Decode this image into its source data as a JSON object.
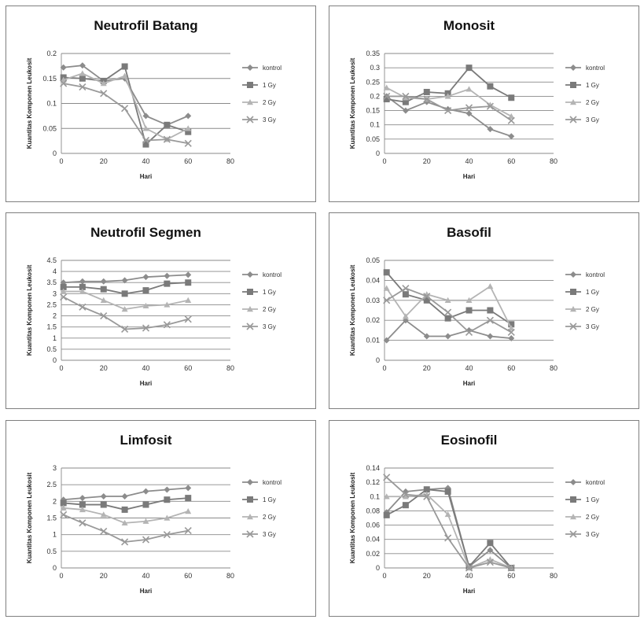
{
  "series_styles": [
    {
      "color": "#8c8c8c",
      "marker": "diamond"
    },
    {
      "color": "#7a7a7a",
      "marker": "square"
    },
    {
      "color": "#b4b4b4",
      "marker": "triangle"
    },
    {
      "color": "#999999",
      "marker": "x"
    }
  ],
  "chart_data": [
    {
      "type": "line",
      "title": "Neutrofil Batang",
      "xlabel": "Hari",
      "ylabel": "Kuantitas Komponen Leukosit",
      "xlim": [
        0,
        80
      ],
      "xticks": [
        0,
        20,
        40,
        60,
        80
      ],
      "xtick_labels": [
        "0",
        "20",
        "40",
        "60",
        "80"
      ],
      "ylim": [
        0,
        0.2
      ],
      "yticks": [
        0,
        0.05,
        0.1,
        0.15,
        0.2
      ],
      "ytick_labels": [
        "0",
        "0.05",
        "0.1",
        "0.15",
        "0.2"
      ],
      "grid": true,
      "legend": "right",
      "x": [
        1,
        10,
        20,
        30,
        40,
        50,
        60
      ],
      "series": [
        {
          "name": "kontrol",
          "values": [
            0.172,
            0.176,
            0.145,
            0.15,
            0.075,
            0.057,
            0.075
          ]
        },
        {
          "name": "1 Gy",
          "values": [
            0.152,
            0.15,
            0.145,
            0.174,
            0.018,
            0.057,
            0.043
          ]
        },
        {
          "name": "2 Gy",
          "values": [
            0.147,
            0.16,
            0.14,
            0.155,
            0.05,
            0.028,
            0.05
          ]
        },
        {
          "name": "3 Gy",
          "values": [
            0.14,
            0.133,
            0.12,
            0.09,
            0.026,
            0.028,
            0.02
          ]
        }
      ]
    },
    {
      "type": "line",
      "title": "Monosit",
      "xlabel": "Hari",
      "ylabel": "Kuantitas Komponen Leukosit",
      "xlim": [
        0,
        80
      ],
      "xticks": [
        0,
        20,
        40,
        60,
        80
      ],
      "xtick_labels": [
        "0",
        "20",
        "40",
        "60",
        "80"
      ],
      "ylim": [
        0,
        0.35
      ],
      "yticks": [
        0,
        0.05,
        0.1,
        0.15,
        0.2,
        0.25,
        0.3,
        0.35
      ],
      "ytick_labels": [
        "0",
        "0.05",
        "0.1",
        "0.15",
        "0.2",
        "0.25",
        "0.3",
        "0.35"
      ],
      "grid": true,
      "legend": "right",
      "x": [
        1,
        10,
        20,
        30,
        40,
        50,
        60
      ],
      "series": [
        {
          "name": "kontrol",
          "values": [
            0.2,
            0.15,
            0.18,
            0.155,
            0.14,
            0.085,
            0.06
          ]
        },
        {
          "name": "1 Gy",
          "values": [
            0.19,
            0.18,
            0.215,
            0.21,
            0.3,
            0.235,
            0.195
          ]
        },
        {
          "name": "2 Gy",
          "values": [
            0.23,
            0.195,
            0.19,
            0.2,
            0.225,
            0.17,
            0.13
          ]
        },
        {
          "name": "3 Gy",
          "values": [
            0.2,
            0.2,
            0.19,
            0.15,
            0.16,
            0.165,
            0.115
          ]
        }
      ]
    },
    {
      "type": "line",
      "title": "Neutrofil Segmen",
      "xlabel": "Hari",
      "ylabel": "Kuantitas Komponen Leukosit",
      "xlim": [
        0,
        80
      ],
      "xticks": [
        0,
        20,
        40,
        60,
        80
      ],
      "xtick_labels": [
        "0",
        "20",
        "40",
        "60",
        "80"
      ],
      "ylim": [
        0,
        4.5
      ],
      "yticks": [
        0,
        0.5,
        1,
        1.5,
        2,
        2.5,
        3,
        3.5,
        4,
        4.5
      ],
      "ytick_labels": [
        "0",
        "0.5",
        "1",
        "1.5",
        "2",
        "2.5",
        "3",
        "3.5",
        "4",
        "4.5"
      ],
      "grid": true,
      "legend": "right",
      "x": [
        1,
        10,
        20,
        30,
        40,
        50,
        60
      ],
      "series": [
        {
          "name": "kontrol",
          "values": [
            3.5,
            3.55,
            3.55,
            3.6,
            3.75,
            3.8,
            3.85
          ]
        },
        {
          "name": "1 Gy",
          "values": [
            3.3,
            3.3,
            3.2,
            3.0,
            3.15,
            3.45,
            3.5
          ]
        },
        {
          "name": "2 Gy",
          "values": [
            3.1,
            3.1,
            2.7,
            2.3,
            2.45,
            2.5,
            2.7
          ]
        },
        {
          "name": "3 Gy",
          "values": [
            2.85,
            2.4,
            2.0,
            1.4,
            1.45,
            1.6,
            1.85
          ]
        }
      ]
    },
    {
      "type": "line",
      "title": "Basofil",
      "xlabel": "Hari",
      "ylabel": "Kuantitas Komponen Leukosit",
      "xlim": [
        0,
        80
      ],
      "xticks": [
        0,
        20,
        40,
        60,
        80
      ],
      "xtick_labels": [
        "0",
        "20",
        "40",
        "60",
        "80"
      ],
      "ylim": [
        0,
        0.05
      ],
      "yticks": [
        0,
        0.01,
        0.02,
        0.03,
        0.04,
        0.05
      ],
      "ytick_labels": [
        "0",
        "0.01",
        "0.02",
        "0.03",
        "0.04",
        "0.05"
      ],
      "grid": true,
      "legend": "right",
      "x": [
        1,
        10,
        20,
        30,
        40,
        50,
        60
      ],
      "series": [
        {
          "name": "kontrol",
          "values": [
            0.01,
            0.02,
            0.012,
            0.012,
            0.015,
            0.012,
            0.011
          ]
        },
        {
          "name": "1 Gy",
          "values": [
            0.044,
            0.033,
            0.03,
            0.021,
            0.025,
            0.025,
            0.018
          ]
        },
        {
          "name": "2 Gy",
          "values": [
            0.036,
            0.022,
            0.033,
            0.03,
            0.03,
            0.037,
            0.016
          ]
        },
        {
          "name": "3 Gy",
          "values": [
            0.03,
            0.036,
            0.032,
            0.024,
            0.014,
            0.02,
            0.014
          ]
        }
      ]
    },
    {
      "type": "line",
      "title": "Limfosit",
      "xlabel": "Hari",
      "ylabel": "Kuantitas Komponen Leukosit",
      "xlim": [
        0,
        80
      ],
      "xticks": [
        0,
        20,
        40,
        60,
        80
      ],
      "xtick_labels": [
        "0",
        "20",
        "40",
        "60",
        "80"
      ],
      "ylim": [
        0,
        3
      ],
      "yticks": [
        0,
        0.5,
        1,
        1.5,
        2,
        2.5,
        3
      ],
      "ytick_labels": [
        "0",
        "0.5",
        "1",
        "1.5",
        "2",
        "2.5",
        "3"
      ],
      "grid": true,
      "legend": "right",
      "x": [
        1,
        10,
        20,
        30,
        40,
        50,
        60
      ],
      "series": [
        {
          "name": "kontrol",
          "values": [
            2.05,
            2.1,
            2.15,
            2.15,
            2.3,
            2.35,
            2.4
          ]
        },
        {
          "name": "1 Gy",
          "values": [
            1.95,
            1.9,
            1.9,
            1.75,
            1.9,
            2.05,
            2.1
          ]
        },
        {
          "name": "2 Gy",
          "values": [
            1.8,
            1.75,
            1.6,
            1.35,
            1.4,
            1.5,
            1.7
          ]
        },
        {
          "name": "3 Gy",
          "values": [
            1.6,
            1.35,
            1.1,
            0.78,
            0.85,
            1.0,
            1.12
          ]
        }
      ]
    },
    {
      "type": "line",
      "title": "Eosinofil",
      "xlabel": "Hari",
      "ylabel": "Kuantitas Komponen Leukosit",
      "xlim": [
        0,
        80
      ],
      "xticks": [
        0,
        20,
        40,
        60,
        80
      ],
      "xtick_labels": [
        "0",
        "20",
        "40",
        "60",
        "80"
      ],
      "ylim": [
        0,
        0.14
      ],
      "yticks": [
        0,
        0.02,
        0.04,
        0.06,
        0.08,
        0.1,
        0.12,
        0.14
      ],
      "ytick_labels": [
        "0",
        "0.02",
        "0.04",
        "0.06",
        "0.08",
        "0.1",
        "0.12",
        "0.14"
      ],
      "grid": true,
      "legend": "right",
      "x": [
        1,
        10,
        20,
        30,
        40,
        50,
        60
      ],
      "series": [
        {
          "name": "kontrol",
          "values": [
            0.078,
            0.107,
            0.11,
            0.112,
            0.002,
            0.025,
            0.0
          ]
        },
        {
          "name": "1 Gy",
          "values": [
            0.074,
            0.088,
            0.11,
            0.107,
            0.002,
            0.035,
            0.0
          ]
        },
        {
          "name": "2 Gy",
          "values": [
            0.1,
            0.1,
            0.103,
            0.075,
            0.0,
            0.012,
            0.0
          ]
        },
        {
          "name": "3 Gy",
          "values": [
            0.127,
            0.103,
            0.1,
            0.042,
            0.0,
            0.008,
            0.0
          ]
        }
      ]
    }
  ]
}
